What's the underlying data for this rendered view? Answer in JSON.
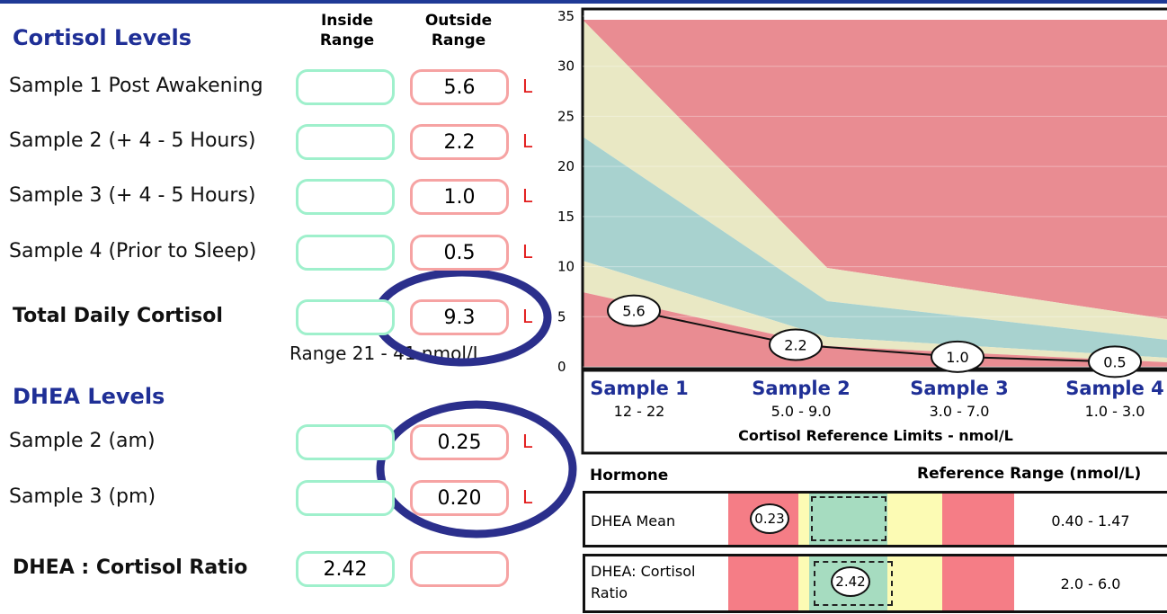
{
  "cortisol": {
    "title": "Cortisol Levels",
    "inside_header": "Inside Range",
    "outside_header": "Outside Range",
    "rows": [
      {
        "label": "Sample 1 Post Awakening",
        "outside": "5.6",
        "flag": "L"
      },
      {
        "label": "Sample 2 (+ 4 - 5 Hours)",
        "outside": "2.2",
        "flag": "L"
      },
      {
        "label": "Sample 3 (+ 4 - 5 Hours)",
        "outside": "1.0",
        "flag": "L"
      },
      {
        "label": "Sample 4 (Prior to Sleep)",
        "outside": "0.5",
        "flag": "L"
      }
    ],
    "total": {
      "label": "Total Daily Cortisol",
      "outside": "9.3",
      "flag": "L",
      "range": "Range 21 - 41 nmol/L"
    }
  },
  "dhea": {
    "title": "DHEA Levels",
    "rows": [
      {
        "label": "Sample 2 (am)",
        "outside": "0.25",
        "flag": "L"
      },
      {
        "label": "Sample 3 (pm)",
        "outside": "0.20",
        "flag": "L"
      }
    ],
    "ratio": {
      "label": "DHEA : Cortisol Ratio",
      "inside": "2.42"
    }
  },
  "chart_data": {
    "type": "line",
    "categories": [
      "Sample 1",
      "Sample 2",
      "Sample 3",
      "Sample 4"
    ],
    "values": [
      5.6,
      2.2,
      1,
      0.5
    ],
    "value_labels": [
      "5.6",
      "2.2",
      "1.0",
      "0.5"
    ],
    "ranges": [
      "12 - 22",
      "5.0 - 9.0",
      "3.0 - 7.0",
      "1.0 - 3.0"
    ],
    "xlabel": "Cortisol Reference Limits - nmol/L",
    "color": "#111111",
    "ylim": [
      0,
      35
    ],
    "yticks": [
      0,
      5,
      10,
      15,
      20,
      25,
      30,
      35
    ],
    "grid": true
  },
  "hormone_table": {
    "header": [
      "Hormone",
      "Reference Range (nmol/L)"
    ],
    "rows": [
      {
        "name": "DHEA Mean",
        "value": "0.23",
        "range": "0.40 - 1.47"
      },
      {
        "name": "DHEA: Cortisol Ratio",
        "value": "2.42",
        "range": "2.0 - 6.0"
      }
    ]
  }
}
